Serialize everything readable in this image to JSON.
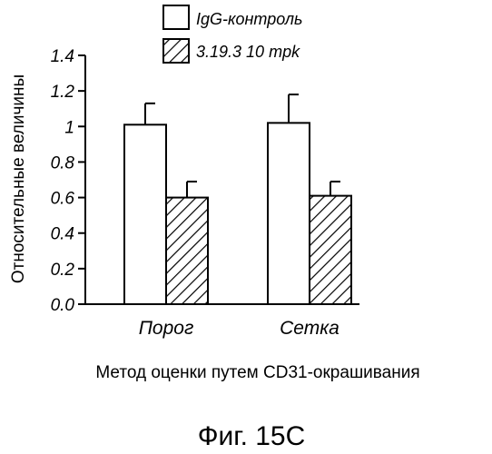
{
  "chart_data": {
    "type": "bar",
    "categories": [
      "Порог",
      "Сетка"
    ],
    "series": [
      {
        "name": "IgG-контроль",
        "values": [
          1.01,
          1.02
        ],
        "errors": [
          0.12,
          0.16
        ],
        "fill": "none"
      },
      {
        "name": "3.19.3 10 mpk",
        "values": [
          0.6,
          0.61
        ],
        "errors": [
          0.09,
          0.08
        ],
        "fill": "hatched"
      }
    ],
    "xlabel": "Метод оценки путем CD31-окрашивания",
    "ylabel": "Относительные величины",
    "ylim": [
      0,
      1.4
    ],
    "yticks": [
      "0.0",
      "0.2",
      "0.4",
      "0.6",
      "0.8",
      "1",
      "1.2",
      "1.4"
    ],
    "grid": false,
    "legend_position": "top"
  },
  "caption": "Фиг. 15С",
  "colors": {
    "ink": "#000000",
    "background": "#ffffff"
  }
}
